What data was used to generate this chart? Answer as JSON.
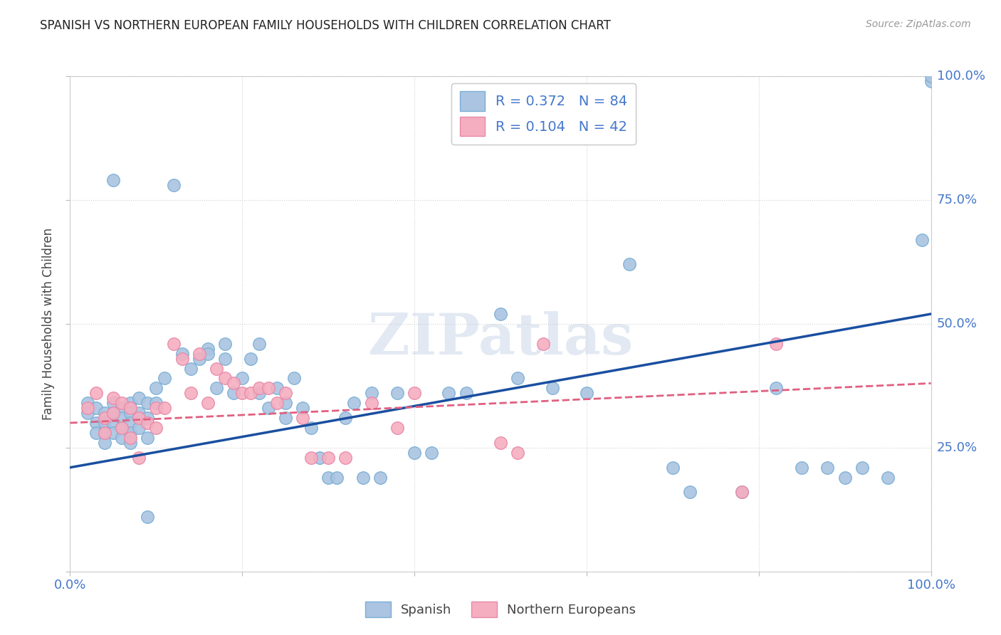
{
  "title": "SPANISH VS NORTHERN EUROPEAN FAMILY HOUSEHOLDS WITH CHILDREN CORRELATION CHART",
  "source": "Source: ZipAtlas.com",
  "ylabel": "Family Households with Children",
  "xlim": [
    0,
    1
  ],
  "ylim": [
    0,
    1
  ],
  "xtick_positions": [
    0.0,
    0.2,
    0.4,
    0.6,
    0.8,
    1.0
  ],
  "ytick_positions": [
    0.0,
    0.25,
    0.5,
    0.75,
    1.0
  ],
  "xtick_labels": [
    "0.0%",
    "",
    "",
    "",
    "",
    "100.0%"
  ],
  "ytick_labels_right": [
    "",
    "25.0%",
    "50.0%",
    "75.0%",
    "100.0%"
  ],
  "spanish_color": "#aac4e2",
  "northern_color": "#f5aec0",
  "spanish_edge": "#7aafd4",
  "northern_edge": "#e888a8",
  "trend_blue": "#1a4fa0",
  "trend_pink": "#e06080",
  "background": "#ffffff",
  "grid_color": "#d0d0d0",
  "title_color": "#222222",
  "axis_label_color": "#4477cc",
  "legend_R_color": "#4477cc",
  "spanish_R": 0.372,
  "spanish_N": 84,
  "northern_R": 0.104,
  "northern_N": 42,
  "watermark": "ZIPatlas",
  "blue_trend_x0": 0.0,
  "blue_trend_y0": 0.21,
  "blue_trend_x1": 1.0,
  "blue_trend_y1": 0.52,
  "pink_trend_x0": 0.0,
  "pink_trend_y0": 0.3,
  "pink_trend_x1": 1.0,
  "pink_trend_y1": 0.38,
  "spanish_x": [
    0.02,
    0.02,
    0.03,
    0.03,
    0.03,
    0.04,
    0.04,
    0.04,
    0.04,
    0.05,
    0.05,
    0.05,
    0.05,
    0.06,
    0.06,
    0.06,
    0.06,
    0.07,
    0.07,
    0.07,
    0.07,
    0.07,
    0.08,
    0.08,
    0.08,
    0.09,
    0.09,
    0.09,
    0.1,
    0.1,
    0.11,
    0.12,
    0.13,
    0.14,
    0.15,
    0.16,
    0.16,
    0.17,
    0.18,
    0.18,
    0.19,
    0.2,
    0.21,
    0.22,
    0.22,
    0.23,
    0.24,
    0.25,
    0.25,
    0.26,
    0.27,
    0.28,
    0.29,
    0.3,
    0.31,
    0.32,
    0.33,
    0.34,
    0.35,
    0.36,
    0.38,
    0.4,
    0.42,
    0.44,
    0.46,
    0.5,
    0.52,
    0.56,
    0.6,
    0.65,
    0.7,
    0.72,
    0.78,
    0.82,
    0.85,
    0.88,
    0.9,
    0.92,
    0.95,
    0.99,
    1.0,
    1.0,
    0.05,
    0.09
  ],
  "spanish_y": [
    0.34,
    0.32,
    0.33,
    0.3,
    0.28,
    0.32,
    0.3,
    0.28,
    0.26,
    0.34,
    0.32,
    0.3,
    0.28,
    0.33,
    0.31,
    0.29,
    0.27,
    0.34,
    0.32,
    0.3,
    0.28,
    0.26,
    0.35,
    0.32,
    0.29,
    0.34,
    0.31,
    0.27,
    0.37,
    0.34,
    0.39,
    0.78,
    0.44,
    0.41,
    0.43,
    0.45,
    0.44,
    0.37,
    0.43,
    0.46,
    0.36,
    0.39,
    0.43,
    0.46,
    0.36,
    0.33,
    0.37,
    0.34,
    0.31,
    0.39,
    0.33,
    0.29,
    0.23,
    0.19,
    0.19,
    0.31,
    0.34,
    0.19,
    0.36,
    0.19,
    0.36,
    0.24,
    0.24,
    0.36,
    0.36,
    0.52,
    0.39,
    0.37,
    0.36,
    0.62,
    0.21,
    0.16,
    0.16,
    0.37,
    0.21,
    0.21,
    0.19,
    0.21,
    0.19,
    0.67,
    0.99,
    1.0,
    0.79,
    0.11
  ],
  "northern_x": [
    0.02,
    0.03,
    0.04,
    0.04,
    0.05,
    0.05,
    0.06,
    0.06,
    0.07,
    0.07,
    0.08,
    0.08,
    0.09,
    0.1,
    0.1,
    0.11,
    0.12,
    0.13,
    0.14,
    0.15,
    0.16,
    0.17,
    0.18,
    0.19,
    0.2,
    0.21,
    0.22,
    0.23,
    0.24,
    0.25,
    0.27,
    0.28,
    0.3,
    0.32,
    0.35,
    0.38,
    0.4,
    0.5,
    0.52,
    0.55,
    0.78,
    0.82
  ],
  "northern_y": [
    0.33,
    0.36,
    0.31,
    0.28,
    0.35,
    0.32,
    0.29,
    0.34,
    0.27,
    0.33,
    0.31,
    0.23,
    0.3,
    0.29,
    0.33,
    0.33,
    0.46,
    0.43,
    0.36,
    0.44,
    0.34,
    0.41,
    0.39,
    0.38,
    0.36,
    0.36,
    0.37,
    0.37,
    0.34,
    0.36,
    0.31,
    0.23,
    0.23,
    0.23,
    0.34,
    0.29,
    0.36,
    0.26,
    0.24,
    0.46,
    0.16,
    0.46
  ]
}
